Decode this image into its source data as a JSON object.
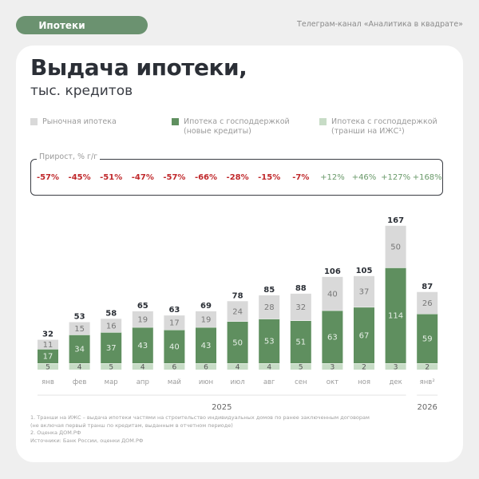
{
  "header": {
    "tag": "Ипотеки",
    "channel": "Телеграм-канал «Аналитика в квадрате»"
  },
  "title": "Выдача ипотеки,",
  "subtitle": "тыс. кредитов",
  "colors": {
    "market": "#d9d9d9",
    "state_new": "#5f8f5f",
    "state_izhs": "#c7dcc6",
    "negative": "#c0282b",
    "positive": "#6a9a6a",
    "accent": "#6b9270"
  },
  "growth_label": "Прирост, % г/г",
  "chart_data": {
    "type": "bar",
    "stacked": true,
    "categories": [
      "янв",
      "фев",
      "мар",
      "апр",
      "май",
      "июн",
      "июл",
      "авг",
      "сен",
      "окт",
      "ноя",
      "дек",
      "янв²"
    ],
    "year_groups": [
      {
        "label": "2025",
        "from": 0,
        "to": 11
      },
      {
        "label": "2026",
        "from": 12,
        "to": 12
      }
    ],
    "series": [
      {
        "name": "Ипотека с господдержкой (транши на ИЖС¹)",
        "values": [
          5,
          4,
          5,
          4,
          6,
          6,
          4,
          4,
          5,
          3,
          2,
          3,
          2
        ]
      },
      {
        "name": "Ипотека с господдержкой (новые кредиты)",
        "values": [
          17,
          34,
          37,
          43,
          40,
          43,
          50,
          53,
          51,
          63,
          67,
          114,
          59
        ]
      },
      {
        "name": "Рыночная ипотека",
        "values": [
          11,
          15,
          16,
          19,
          17,
          19,
          24,
          28,
          32,
          40,
          37,
          50,
          26
        ]
      }
    ],
    "totals": [
      32,
      53,
      58,
      65,
      63,
      69,
      78,
      85,
      88,
      106,
      105,
      167,
      87
    ],
    "growth_yoy": [
      "-57%",
      "-45%",
      "-51%",
      "-47%",
      "-57%",
      "-66%",
      "-28%",
      "-15%",
      "-7%",
      "+12%",
      "+46%",
      "+127%",
      "+168%"
    ],
    "legend": [
      "Рыночная ипотека",
      "Ипотека с господдержкой",
      "(новые кредиты)",
      "Ипотека с господдержкой",
      "(транши на ИЖС¹)"
    ],
    "legend_placement": "top",
    "grid": false
  },
  "footnotes": [
    "1. Транши на ИЖС – выдача ипотеки частями на строительство индивидуальных домов по ранее заключенным договорам",
    "(не включая первый транш по кредитам, выданным в отчетном периоде)",
    "2. Оценка ДОМ.РФ",
    "Источники: Банк России, оценки ДОМ.РФ"
  ]
}
